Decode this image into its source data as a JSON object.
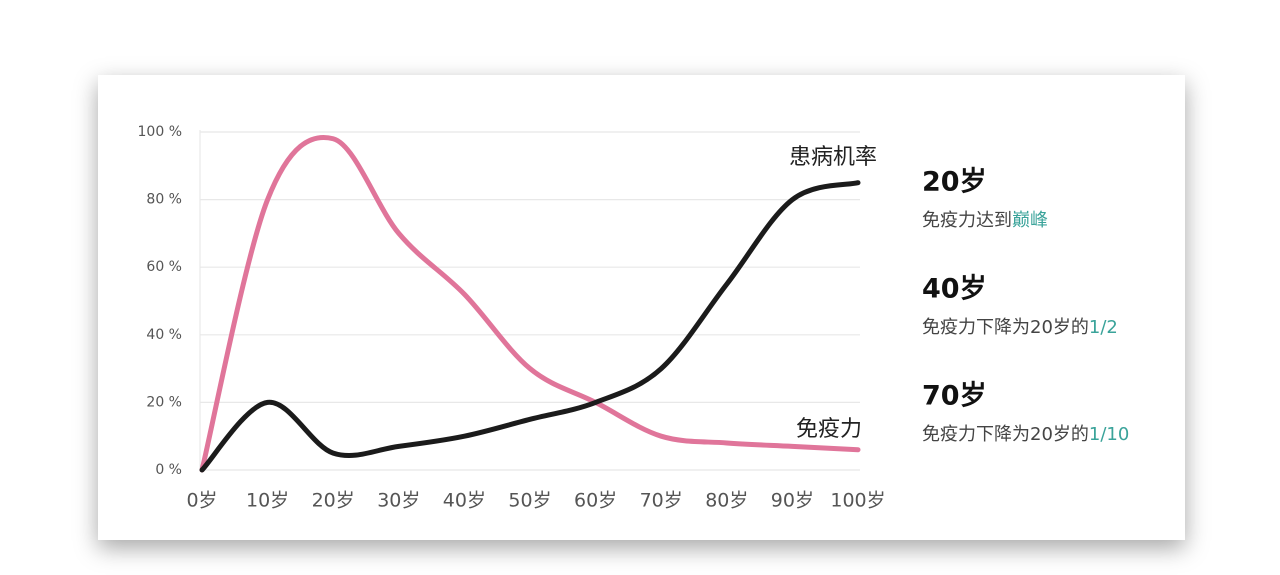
{
  "chart_data": {
    "type": "line",
    "categories": [
      "0岁",
      "10岁",
      "20岁",
      "30岁",
      "40岁",
      "50岁",
      "60岁",
      "70岁",
      "80岁",
      "90岁",
      "100岁"
    ],
    "series": [
      {
        "name": "免疫力",
        "color": "#e0759a",
        "values": [
          0,
          80,
          98,
          70,
          52,
          30,
          20,
          10,
          8,
          7,
          6
        ]
      },
      {
        "name": "患病机率",
        "color": "#1b1b1b",
        "values": [
          0,
          20,
          5,
          7,
          10,
          15,
          20,
          30,
          55,
          80,
          85
        ]
      }
    ],
    "ylim": [
      0,
      100
    ],
    "yticks": [
      {
        "value": 0,
        "label": "0 %"
      },
      {
        "value": 20,
        "label": "20 %"
      },
      {
        "value": 40,
        "label": "40 %"
      },
      {
        "value": 60,
        "label": "60 %"
      },
      {
        "value": 80,
        "label": "80 %"
      },
      {
        "value": 100,
        "label": "100 %"
      }
    ],
    "grid": true,
    "highlight_color": "#3aa39a",
    "annotations": [
      {
        "title": "20岁",
        "text": "免疫力达到",
        "highlight": "巅峰"
      },
      {
        "title": "40岁",
        "text": "免疫力下降为20岁的",
        "highlight": "1/2"
      },
      {
        "title": "70岁",
        "text": "免疫力下降为20岁的",
        "highlight": "1/10"
      }
    ]
  }
}
